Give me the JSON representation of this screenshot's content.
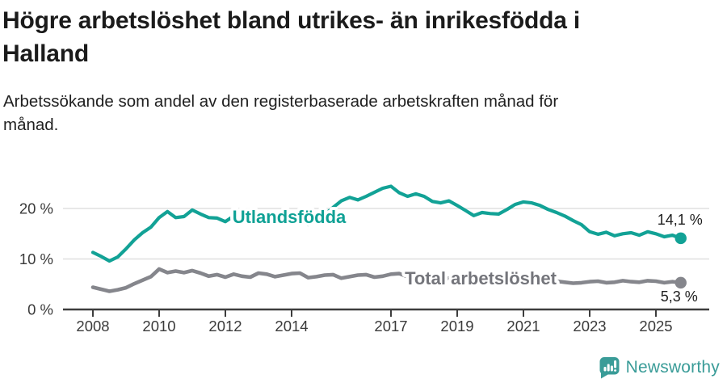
{
  "header": {
    "title": "Högre arbetslöshet bland utrikes- än inrikesfödda i\nHalland",
    "subtitle": "Arbetssökande som andel av den registerbaserade arbetskraften månad för\nmånad."
  },
  "colors": {
    "accent_teal": "#12a296",
    "label_teal": "#0fa195",
    "line_gray": "#85868c",
    "label_gray": "#74757b",
    "axis": "#3d3d3d",
    "grid": "#e0e0e0",
    "logo_teal": "#3a9c98"
  },
  "chart_data": {
    "type": "line",
    "title": "Högre arbetslöshet bland utrikes- än inrikesfödda i Halland",
    "xlabel": "",
    "ylabel": "",
    "grid": "horizontal",
    "legend_position": "inline-labels",
    "x_unit": "year-month",
    "x_start": 2008.0,
    "x_step": 0.25,
    "x_range": [
      2008.0,
      2025.75
    ],
    "ylim": [
      0,
      26
    ],
    "y_ticks": [
      {
        "value": 0,
        "label": "0 %"
      },
      {
        "value": 10,
        "label": "10 %"
      },
      {
        "value": 20,
        "label": "20 %"
      }
    ],
    "x_ticks": [
      {
        "year": 2008,
        "label": "2008"
      },
      {
        "year": 2010,
        "label": "2010"
      },
      {
        "year": 2012,
        "label": "2012"
      },
      {
        "year": 2014,
        "label": "2014"
      },
      {
        "year": 2017,
        "label": "2017"
      },
      {
        "year": 2019,
        "label": "2019"
      },
      {
        "year": 2021,
        "label": "2021"
      },
      {
        "year": 2023,
        "label": "2023"
      },
      {
        "year": 2025,
        "label": "2025"
      }
    ],
    "series": [
      {
        "name": "Utlandsfödda",
        "color": "#12a296",
        "label_color": "#0fa195",
        "end_label": "14,1 %",
        "end_value": 14.1,
        "values": [
          11.3,
          10.5,
          9.6,
          10.4,
          12.0,
          13.8,
          15.2,
          16.3,
          18.2,
          19.4,
          18.2,
          18.4,
          19.7,
          18.9,
          18.2,
          18.1,
          17.4,
          18.5,
          17.9,
          17.5,
          18.2,
          18.6,
          16.9,
          17.4,
          17.9,
          18.2,
          16.8,
          17.8,
          18.8,
          20.2,
          21.5,
          22.2,
          21.7,
          22.4,
          23.2,
          24.0,
          24.4,
          23.1,
          22.4,
          22.9,
          22.4,
          21.4,
          21.1,
          21.5,
          20.6,
          19.6,
          18.6,
          19.2,
          19.0,
          18.9,
          19.8,
          20.8,
          21.3,
          21.1,
          20.6,
          19.8,
          19.2,
          18.5,
          17.6,
          16.8,
          15.4,
          14.9,
          15.3,
          14.6,
          15.0,
          15.2,
          14.7,
          15.4,
          15.0,
          14.4,
          14.7,
          14.1
        ]
      },
      {
        "name": "Total arbetslöshet",
        "color": "#85868c",
        "label_color": "#74757b",
        "end_label": "5,3 %",
        "end_value": 5.3,
        "values": [
          4.4,
          4.0,
          3.6,
          3.9,
          4.3,
          5.1,
          5.8,
          6.5,
          8.0,
          7.3,
          7.6,
          7.3,
          7.7,
          7.2,
          6.6,
          6.9,
          6.4,
          7.0,
          6.6,
          6.4,
          7.2,
          7.0,
          6.5,
          6.8,
          7.1,
          7.2,
          6.3,
          6.5,
          6.8,
          6.9,
          6.2,
          6.5,
          6.8,
          6.9,
          6.4,
          6.6,
          7.0,
          7.1,
          6.5,
          6.7,
          6.6,
          6.4,
          6.1,
          6.2,
          6.3,
          6.1,
          5.9,
          6.1,
          6.4,
          6.8,
          6.8,
          6.6,
          6.5,
          6.3,
          6.0,
          5.8,
          5.6,
          5.4,
          5.2,
          5.3,
          5.5,
          5.6,
          5.3,
          5.4,
          5.7,
          5.5,
          5.4,
          5.7,
          5.6,
          5.3,
          5.5,
          5.3
        ]
      }
    ]
  },
  "footer": {
    "brand": "Newsworthy"
  }
}
